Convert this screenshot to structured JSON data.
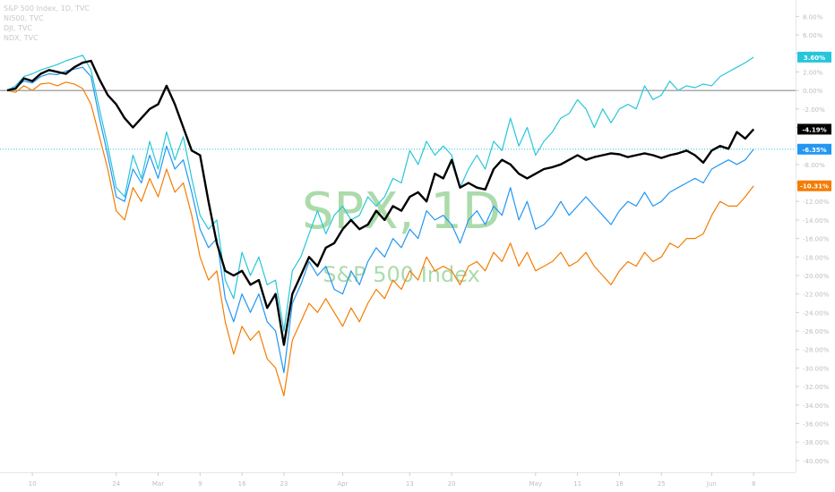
{
  "legend": {
    "items": [
      "S&P 500 Index, 1D, TVC",
      "NI500, TVC",
      "DJI, TVC",
      "NDX, TVC"
    ]
  },
  "watermark": {
    "symbol": "SPX, 1D",
    "name": "S&P 500 Index"
  },
  "colors": {
    "spx": "#000000",
    "ndx": "#26c6da",
    "dji": "#2196f3",
    "ni500": "#f57c00",
    "watermark": "#8fcf8f",
    "zero_line": "#555555",
    "dotted_line": "#26c6da",
    "axis_text": "#bdbdbd"
  },
  "chart_data": {
    "type": "line",
    "ylim": [
      -40,
      9
    ],
    "y_tick_labels": [
      "8.00%",
      "6.00%",
      "4.00%",
      "2.00%",
      "0.00%",
      "-2.00%",
      "-4.00%",
      "-6.00%",
      "-8.00%",
      "-10.00%",
      "-12.00%",
      "-14.00%",
      "-16.00%",
      "-18.00%",
      "-20.00%",
      "-22.00%",
      "-24.00%",
      "-26.00%",
      "-28.00%",
      "-30.00%",
      "-32.00%",
      "-34.00%",
      "-36.00%",
      "-38.00%",
      "-40.00%"
    ],
    "y_tick_values": [
      8,
      6,
      4,
      2,
      0,
      -2,
      -4,
      -6,
      -8,
      -10,
      -12,
      -14,
      -16,
      -18,
      -20,
      -22,
      -24,
      -26,
      -28,
      -30,
      -32,
      -34,
      -36,
      -38,
      -40
    ],
    "x_ticks": [
      {
        "label": "10",
        "index": 3
      },
      {
        "label": "24",
        "index": 13
      },
      {
        "label": "Mar",
        "index": 18
      },
      {
        "label": "9",
        "index": 23
      },
      {
        "label": "16",
        "index": 28
      },
      {
        "label": "23",
        "index": 33
      },
      {
        "label": "Apr",
        "index": 40
      },
      {
        "label": "13",
        "index": 48
      },
      {
        "label": "20",
        "index": 53
      },
      {
        "label": "May",
        "index": 63
      },
      {
        "label": "11",
        "index": 68
      },
      {
        "label": "18",
        "index": 73
      },
      {
        "label": "25",
        "index": 78
      },
      {
        "label": "Jun",
        "index": 84
      },
      {
        "label": "8",
        "index": 89
      }
    ],
    "x_max_index": 94,
    "series": [
      {
        "name": "NDX, TVC",
        "key": "ndx",
        "last_label": "3.60%",
        "values": [
          0,
          0.5,
          1.5,
          1.8,
          2.2,
          2.5,
          2.8,
          3.2,
          3.5,
          3.8,
          2.2,
          -2,
          -6,
          -10.5,
          -11.5,
          -7,
          -9.5,
          -5.5,
          -8.5,
          -4.5,
          -7.5,
          -5,
          -9.5,
          -13.5,
          -15,
          -14,
          -20.5,
          -22.5,
          -17.5,
          -20,
          -18,
          -21,
          -20.5,
          -26,
          -19.5,
          -18,
          -15.5,
          -13,
          -15.5,
          -13.5,
          -12.5,
          -14,
          -13.5,
          -11.5,
          -12.5,
          -11.5,
          -9.5,
          -10,
          -6.5,
          -8,
          -5.5,
          -7,
          -6,
          -7,
          -10.5,
          -8.5,
          -7,
          -8.5,
          -5.5,
          -6.5,
          -3,
          -6,
          -4,
          -7,
          -5.5,
          -4.5,
          -3,
          -2.5,
          -1,
          -2,
          -4,
          -2,
          -3.5,
          -2,
          -1.5,
          -2,
          0.5,
          -1,
          -0.5,
          1,
          0,
          0.5,
          0.3,
          0.7,
          0.5,
          1.5,
          2,
          2.5,
          3,
          3.6
        ]
      },
      {
        "name": "S&P 500 Index, 1D, TVC",
        "key": "spx",
        "last_label": "-4.19%",
        "values": [
          0,
          0.2,
          1.3,
          1,
          1.8,
          2.2,
          2,
          1.8,
          2.5,
          3,
          3.2,
          1.2,
          -0.5,
          -1.5,
          -3,
          -4,
          -3,
          -2,
          -1.5,
          0.5,
          -1.5,
          -4,
          -6.5,
          -7,
          -12,
          -16.5,
          -19.5,
          -20,
          -19.5,
          -21,
          -20.5,
          -23.5,
          -22,
          -27.5,
          -22,
          -20,
          -18,
          -19,
          -17,
          -16.5,
          -15,
          -14,
          -15,
          -14.5,
          -13,
          -14,
          -12.5,
          -13,
          -11.5,
          -11,
          -12,
          -9,
          -9.5,
          -7.5,
          -10.5,
          -10,
          -10.5,
          -10.7,
          -8.5,
          -7.5,
          -8,
          -9,
          -9.5,
          -9,
          -8.5,
          -8.3,
          -8,
          -7.5,
          -7,
          -7.5,
          -7.2,
          -7,
          -6.8,
          -6.9,
          -7.2,
          -7,
          -6.8,
          -7,
          -7.3,
          -7,
          -6.8,
          -6.5,
          -7,
          -7.8,
          -6.5,
          -6,
          -6.3,
          -4.5,
          -5.2,
          -4.19
        ]
      },
      {
        "name": "DJI, TVC",
        "key": "dji",
        "last_label": "-6.35%",
        "values": [
          0,
          0.3,
          1,
          0.8,
          1.5,
          1.8,
          1.7,
          2.1,
          2.3,
          2.5,
          1.5,
          -3,
          -7,
          -11.5,
          -12,
          -8.5,
          -10,
          -7,
          -9.5,
          -6,
          -8.5,
          -7.5,
          -11,
          -15,
          -17,
          -16,
          -22.5,
          -25,
          -22,
          -24,
          -22,
          -25,
          -26,
          -30.5,
          -23,
          -21,
          -18.5,
          -20,
          -19,
          -21.5,
          -22,
          -19.5,
          -21,
          -18.5,
          -17,
          -18,
          -16,
          -17,
          -15,
          -16,
          -13,
          -14,
          -13.5,
          -14.5,
          -16.5,
          -14,
          -13,
          -14.5,
          -12.5,
          -13.5,
          -10.5,
          -14,
          -12,
          -15,
          -14.5,
          -13.5,
          -12,
          -13.5,
          -12.5,
          -11.5,
          -12.5,
          -13.5,
          -14.5,
          -13,
          -12,
          -12.5,
          -11,
          -12.5,
          -12,
          -11,
          -10.5,
          -10,
          -9.5,
          -10,
          -8.5,
          -8,
          -7.5,
          -8,
          -7.5,
          -6.35
        ]
      },
      {
        "name": "NI500, TVC",
        "key": "ni500",
        "last_label": "-10.31%",
        "values": [
          0,
          -0.2,
          0.5,
          0,
          0.7,
          0.8,
          0.5,
          0.9,
          0.7,
          0.2,
          -1.5,
          -5,
          -8.5,
          -13,
          -14,
          -10.5,
          -12,
          -9.5,
          -11.5,
          -8.5,
          -11,
          -10,
          -13.5,
          -18,
          -20.5,
          -19.5,
          -25,
          -28.5,
          -25.5,
          -27,
          -26,
          -29,
          -30,
          -33,
          -27,
          -25,
          -23,
          -24,
          -22.5,
          -24,
          -25.5,
          -23.5,
          -25,
          -23,
          -21.5,
          -22.5,
          -20.5,
          -21.5,
          -19.5,
          -20.5,
          -18,
          -19.5,
          -19,
          -19.5,
          -21,
          -19,
          -18.5,
          -19.5,
          -17.5,
          -18.5,
          -16.5,
          -19,
          -17.5,
          -19.5,
          -19,
          -18.5,
          -17.5,
          -19,
          -18.5,
          -17.5,
          -19,
          -20,
          -21,
          -19.5,
          -18.5,
          -19,
          -17.5,
          -18.5,
          -18,
          -16.5,
          -17,
          -16,
          -16,
          -15.5,
          -13.5,
          -12,
          -12.5,
          -12.5,
          -11.5,
          -10.31
        ]
      }
    ],
    "reference_lines": [
      {
        "value": 0,
        "style": "solid"
      },
      {
        "value": -6.35,
        "style": "dotted"
      }
    ]
  }
}
